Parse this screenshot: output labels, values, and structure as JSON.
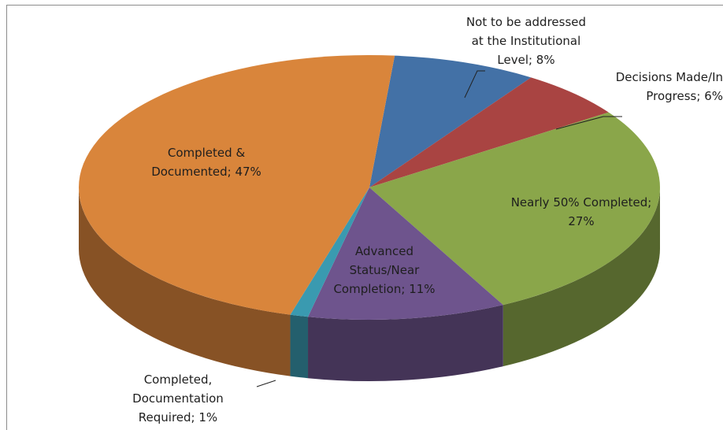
{
  "chart_data": {
    "type": "pie3d",
    "values": [
      8,
      6,
      27,
      11,
      1,
      47
    ],
    "value_labels": [
      "Not to be addressed at the Institutional Level; 8%",
      "Decisions Made/In Progress; 6%",
      "Nearly 50% Completed; 27%",
      "Advanced Status/Near Completion; 11%",
      "Completed, Documentation Required; 1%",
      "Completed & Documented; 47%"
    ],
    "colors": [
      "#4371a6",
      "#a94442",
      "#8aa64a",
      "#6e548d",
      "#3a9ab0",
      "#d9853b"
    ]
  }
}
